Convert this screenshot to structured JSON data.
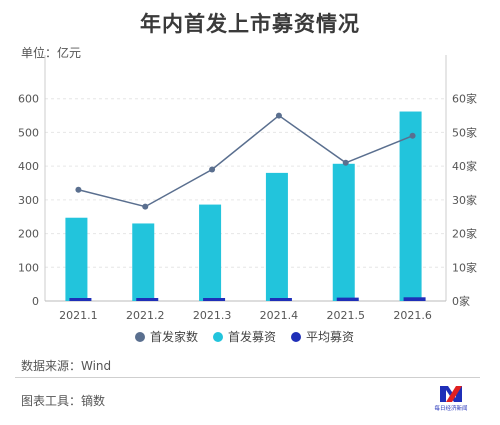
{
  "header": {
    "title": "年内首发上市募资情况",
    "unit": "单位：亿元"
  },
  "footer": {
    "source": "数据来源：Wind",
    "tool": "图表工具：镝数"
  },
  "logo": {
    "text": "每日经济新闻"
  },
  "colors": {
    "count_line": "#5a6f8f",
    "raised_bar": "#22c4dc",
    "avg_bar": "#1f2fb8"
  },
  "chart_data": {
    "type": "bar",
    "categories": [
      "2021.1",
      "2021.2",
      "2021.3",
      "2021.4",
      "2021.5",
      "2021.6"
    ],
    "series": [
      {
        "name": "首发家数",
        "type": "line",
        "axis": "right",
        "values": [
          33,
          28,
          39,
          55,
          41,
          49
        ]
      },
      {
        "name": "首发募资",
        "type": "bar",
        "axis": "left",
        "values": [
          247,
          230,
          286,
          380,
          407,
          562
        ]
      },
      {
        "name": "平均募资",
        "type": "bar",
        "axis": "left",
        "values": [
          7,
          8,
          7,
          7,
          10,
          11
        ]
      }
    ],
    "y_left": {
      "ylim": [
        0,
        700
      ],
      "ticks": [
        "0",
        "100",
        "200",
        "300",
        "400",
        "500",
        "600"
      ]
    },
    "y_right": {
      "ylim": [
        0,
        70
      ],
      "ticks": [
        "0家",
        "10家",
        "20家",
        "30家",
        "40家",
        "50家",
        "60家"
      ]
    },
    "grid": true,
    "legend": "bottom"
  }
}
